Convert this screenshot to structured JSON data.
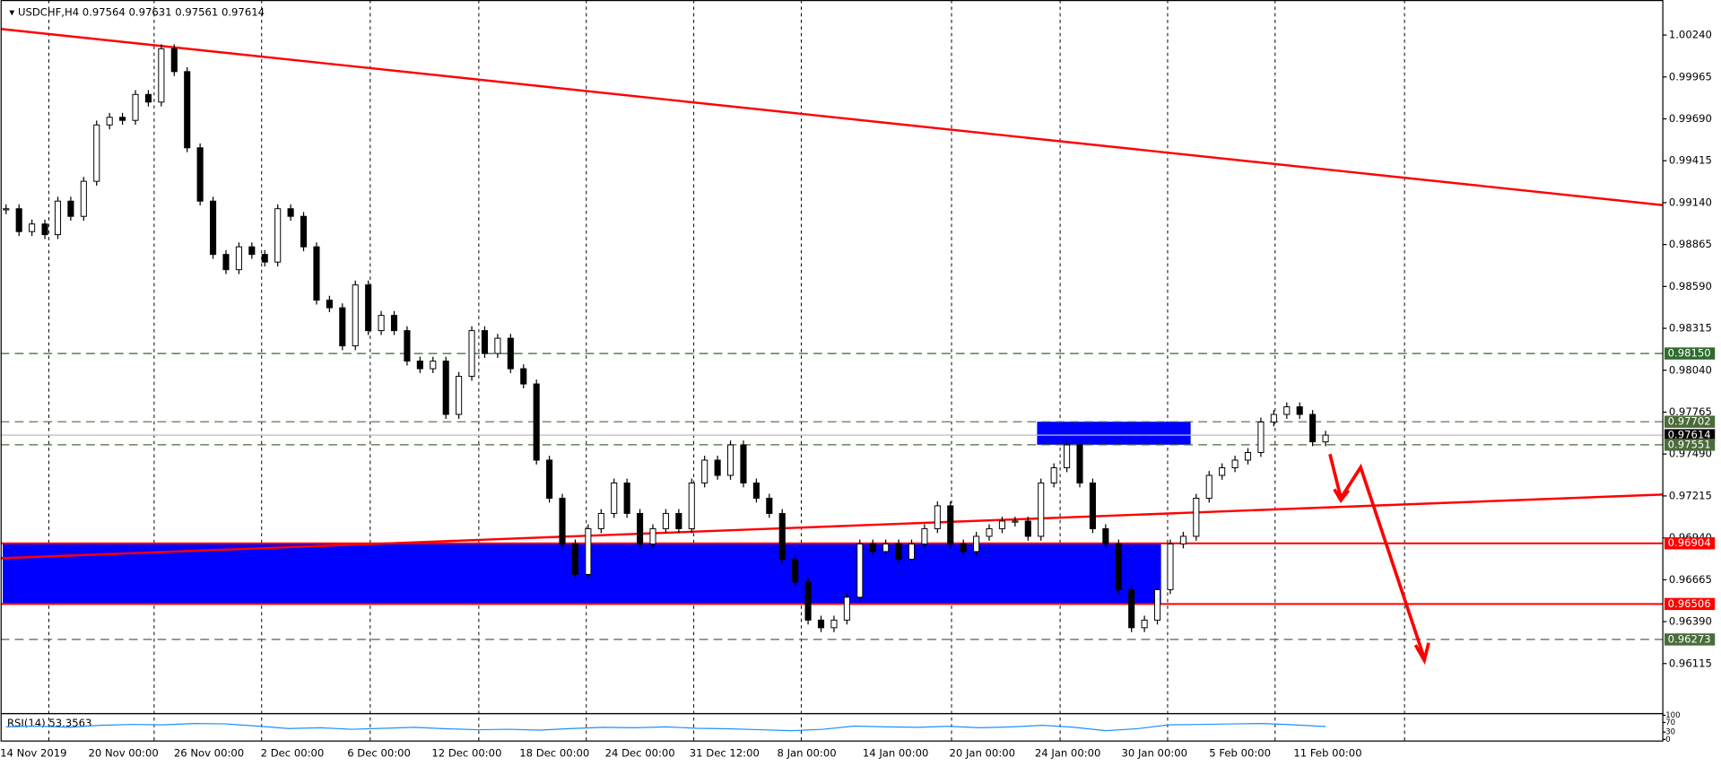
{
  "chart_data": {
    "type": "candlestick",
    "symbol": "USDCHF,H4",
    "quote": [
      0.97564,
      0.97631,
      0.97561,
      0.97614
    ],
    "closes": [
      0.991,
      0.9895,
      0.99,
      0.9893,
      0.9915,
      0.9905,
      0.9928,
      0.9965,
      0.997,
      0.9968,
      0.9985,
      0.998,
      1.0015,
      1.0,
      0.995,
      0.9915,
      0.988,
      0.987,
      0.9885,
      0.988,
      0.9875,
      0.991,
      0.9905,
      0.9885,
      0.985,
      0.9845,
      0.982,
      0.986,
      0.983,
      0.984,
      0.983,
      0.981,
      0.9805,
      0.981,
      0.9775,
      0.98,
      0.983,
      0.9815,
      0.9825,
      0.9805,
      0.9795,
      0.9745,
      0.972,
      0.969,
      0.967,
      0.97,
      0.971,
      0.973,
      0.971,
      0.969,
      0.97,
      0.971,
      0.97,
      0.973,
      0.9745,
      0.9735,
      0.9755,
      0.973,
      0.972,
      0.971,
      0.968,
      0.9665,
      0.964,
      0.9635,
      0.964,
      0.9655,
      0.969,
      0.9685,
      0.969,
      0.968,
      0.969,
      0.97,
      0.9715,
      0.969,
      0.9685,
      0.9695,
      0.97,
      0.9705,
      0.9705,
      0.9695,
      0.973,
      0.974,
      0.9755,
      0.973,
      0.97,
      0.969,
      0.966,
      0.9635,
      0.964,
      0.966,
      0.969,
      0.9695,
      0.972,
      0.9735,
      0.974,
      0.9745,
      0.975,
      0.977,
      0.9775,
      0.978,
      0.9775,
      0.9757,
      0.97614
    ],
    "ylim": [
      0.9579,
      1.0047
    ],
    "yticks": [
      {
        "value": 1.0024,
        "label": "1.00240"
      },
      0.99965,
      {
        "value": 0.9969,
        "label": "0.99690"
      },
      0.99415,
      {
        "value": 0.9914,
        "label": "0.99140"
      },
      0.98865,
      {
        "value": 0.9859,
        "label": "0.98590"
      },
      0.98315,
      {
        "value": 0.9804,
        "label": "0.98040"
      },
      0.97765,
      {
        "value": 0.9749,
        "label": "0.97490"
      },
      0.97215,
      {
        "value": 0.9694,
        "label": "0.96940"
      },
      0.96665,
      {
        "value": 0.9639,
        "label": "0.96390"
      },
      0.96115
    ],
    "x_labels": [
      "14 Nov 2019",
      "20 Nov 00:00",
      "26 Nov 00:00",
      "2 Dec 00:00",
      "6 Dec 00:00",
      "12 Dec 00:00",
      "18 Dec 00:00",
      "24 Dec 00:00",
      "31 Dec 12:00",
      "8 Jan 00:00",
      "14 Jan 00:00",
      "20 Jan 00:00",
      "24 Jan 00:00",
      "30 Jan 00:00",
      "5 Feb 00:00",
      "11 Feb 00:00"
    ],
    "levels": [
      {
        "value": 0.9815,
        "label": "0.98150",
        "color": "#2f6b2f",
        "style": "dashed"
      },
      {
        "value": 0.97702,
        "label": "0.97702",
        "color": "#4b6b3a",
        "style": "dashed"
      },
      {
        "value": 0.97614,
        "label": "0.97614",
        "color": "#000000",
        "style": "solid"
      },
      {
        "value": 0.97551,
        "label": "0.97551",
        "color": "#4b6b3a",
        "style": "dashed"
      },
      {
        "value": 0.96904,
        "label": "0.96904",
        "color": "#ff0000",
        "style": "solid"
      },
      {
        "value": 0.96506,
        "label": "0.96506",
        "color": "#ff0000",
        "style": "solid"
      },
      {
        "value": 0.96273,
        "label": "0.96273",
        "color": "#4b6b3a",
        "style": "dashed"
      }
    ],
    "zones": [
      {
        "low": 0.96506,
        "high": 0.96904,
        "color": "#0000ff"
      },
      {
        "low": 0.97551,
        "high": 0.97702,
        "color": "#0000ff"
      }
    ],
    "trendlines": [
      {
        "start": 1.0028,
        "end": 0.99124,
        "color": "#ff0000"
      },
      {
        "start": 0.96806,
        "end": 0.97224,
        "color": "#ff0000"
      }
    ],
    "rsi": {
      "label": "RSI(14)",
      "value": 53.3563,
      "color": "#1e90ff",
      "ylim": [
        0,
        100
      ],
      "yticks": [
        0,
        30,
        70,
        100
      ],
      "values": [
        52,
        55,
        50,
        58,
        62,
        60,
        66,
        64,
        55,
        45,
        48,
        42,
        46,
        50,
        44,
        40,
        42,
        38,
        45,
        50,
        48,
        52,
        46,
        44,
        40,
        36,
        42,
        55,
        52,
        50,
        54,
        48,
        52,
        58,
        50,
        36,
        44,
        60,
        62,
        64,
        66,
        60,
        53
      ]
    }
  }
}
